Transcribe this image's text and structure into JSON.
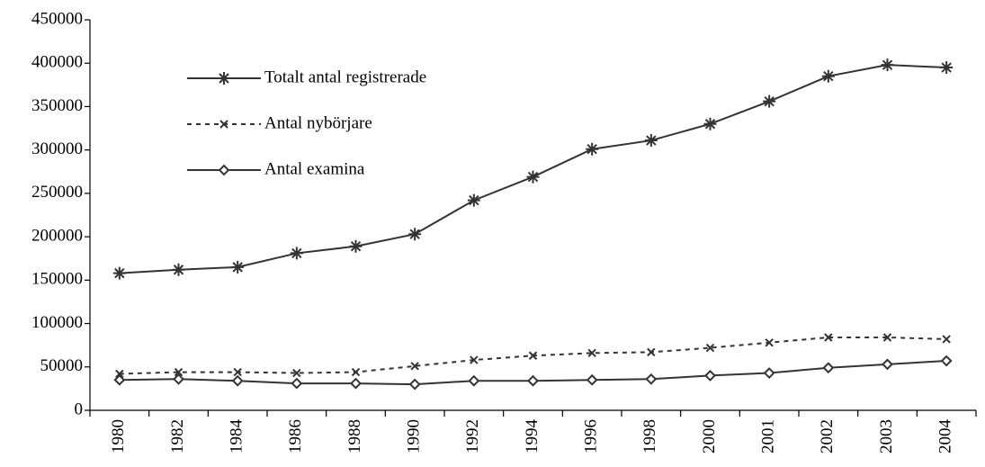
{
  "chart_data": {
    "type": "line",
    "categories": [
      "1980",
      "1982",
      "1984",
      "1986",
      "1988",
      "1990",
      "1992",
      "1994",
      "1996",
      "1998",
      "2000",
      "2001",
      "2002",
      "2003",
      "2004"
    ],
    "series": [
      {
        "name": "Totalt antal registrerade",
        "color": "#333333",
        "marker": "asterisk",
        "dash": false,
        "values": [
          158000,
          162000,
          165000,
          181000,
          189000,
          203000,
          242000,
          269000,
          301000,
          311000,
          330000,
          356000,
          385000,
          398000,
          395000
        ]
      },
      {
        "name": "Antal nybörjare",
        "color": "#333333",
        "marker": "x",
        "dash": true,
        "values": [
          42000,
          44000,
          44000,
          43000,
          44000,
          51000,
          58000,
          63000,
          66000,
          67000,
          72000,
          78000,
          84000,
          84000,
          82000
        ]
      },
      {
        "name": "Antal examina",
        "color": "#333333",
        "marker": "diamond",
        "dash": false,
        "values": [
          35000,
          36000,
          34000,
          31000,
          31000,
          30000,
          34000,
          34000,
          35000,
          36000,
          40000,
          43000,
          49000,
          53000,
          57000
        ]
      }
    ],
    "ylim": [
      0,
      450000
    ],
    "yticks": [
      0,
      50000,
      100000,
      150000,
      200000,
      250000,
      300000,
      350000,
      400000,
      450000
    ],
    "grid": false,
    "legend": "upper left"
  }
}
